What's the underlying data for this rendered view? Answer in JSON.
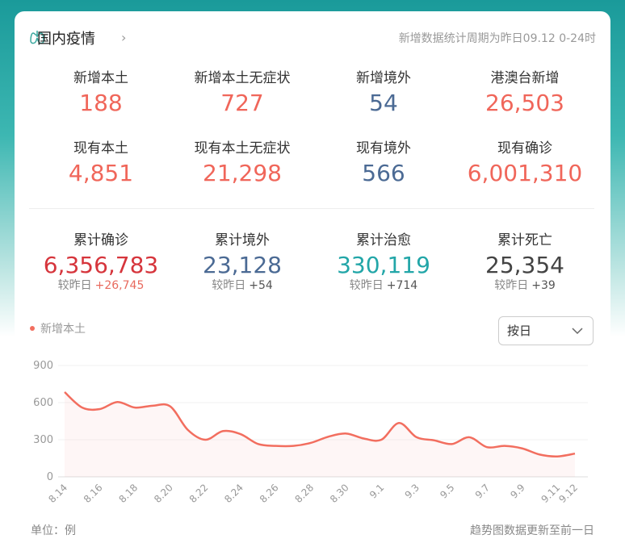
{
  "header": {
    "title": "国内疫情",
    "note": "新增数据统计周期为昨日09.12 0-24时"
  },
  "stats": [
    {
      "label": "新增本土",
      "value": "188"
    },
    {
      "label": "新增本土无症状",
      "value": "727"
    },
    {
      "label": "新增境外",
      "value": "54"
    },
    {
      "label": "港澳台新增",
      "value": "26,503"
    },
    {
      "label": "现有本土",
      "value": "4,851"
    },
    {
      "label": "现有本土无症状",
      "value": "21,298"
    },
    {
      "label": "现有境外",
      "value": "566"
    },
    {
      "label": "现有确诊",
      "value": "6,001,310"
    }
  ],
  "totals": [
    {
      "label": "累计确诊",
      "value": "6,356,783",
      "compare": "较昨日",
      "delta": "+26,745"
    },
    {
      "label": "累计境外",
      "value": "23,128",
      "compare": "较昨日",
      "delta": "+54"
    },
    {
      "label": "累计治愈",
      "value": "330,119",
      "compare": "较昨日",
      "delta": "+714"
    },
    {
      "label": "累计死亡",
      "value": "25,354",
      "compare": "较昨日",
      "delta": "+39"
    }
  ],
  "dropdown": "按日",
  "chart_data": {
    "type": "line",
    "series": [
      {
        "name": "新增本土",
        "color": "#f26e5f",
        "values": [
          685,
          560,
          548,
          605,
          560,
          575,
          570,
          380,
          300,
          370,
          345,
          265,
          250,
          250,
          275,
          325,
          350,
          310,
          300,
          435,
          320,
          295,
          265,
          320,
          240,
          250,
          230,
          180,
          165,
          188
        ]
      }
    ],
    "categories": [
      "8.14",
      null,
      "8.16",
      null,
      "8.18",
      null,
      "8.20",
      null,
      "8.22",
      null,
      "8.24",
      null,
      "8.26",
      null,
      "8.28",
      null,
      "8.30",
      null,
      "9.1",
      null,
      "9.3",
      null,
      "9.5",
      null,
      "9.7",
      null,
      "9.9",
      null,
      "9.11",
      "9.12"
    ],
    "ylim": [
      0,
      900
    ],
    "yticks": [
      0,
      300,
      600,
      900
    ],
    "grid": true
  },
  "footer": {
    "unit": "单位：例",
    "note": "趋势图数据更新至前一日"
  }
}
